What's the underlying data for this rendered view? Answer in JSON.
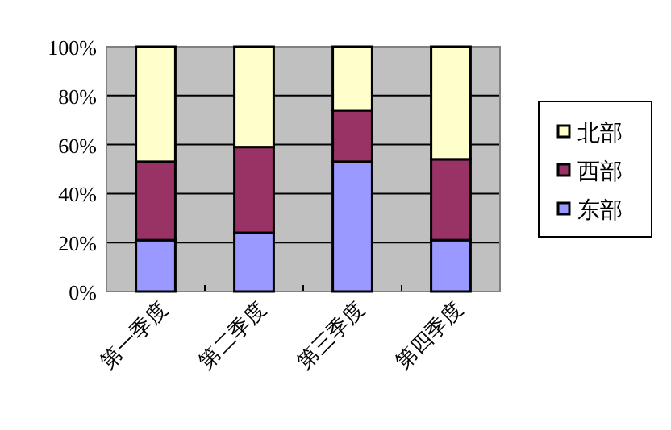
{
  "chart_data": {
    "type": "bar",
    "stacked": true,
    "categories": [
      "第一季度",
      "第二季度",
      "第三季度",
      "第四季度"
    ],
    "series": [
      {
        "name": "东部",
        "color": "#9999ff",
        "values": [
          21,
          24,
          53,
          21
        ]
      },
      {
        "name": "西部",
        "color": "#993366",
        "values": [
          32,
          35,
          21,
          33
        ]
      },
      {
        "name": "北部",
        "color": "#ffffcc",
        "values": [
          47,
          41,
          26,
          46
        ]
      }
    ],
    "ylim": [
      0,
      100
    ],
    "yticks": [
      {
        "value": 0,
        "label": "0%"
      },
      {
        "value": 20,
        "label": "20%"
      },
      {
        "value": 40,
        "label": "40%"
      },
      {
        "value": 60,
        "label": "60%"
      },
      {
        "value": 80,
        "label": "80%"
      },
      {
        "value": 100,
        "label": "100%"
      }
    ],
    "grid": "y",
    "legend": "right"
  }
}
